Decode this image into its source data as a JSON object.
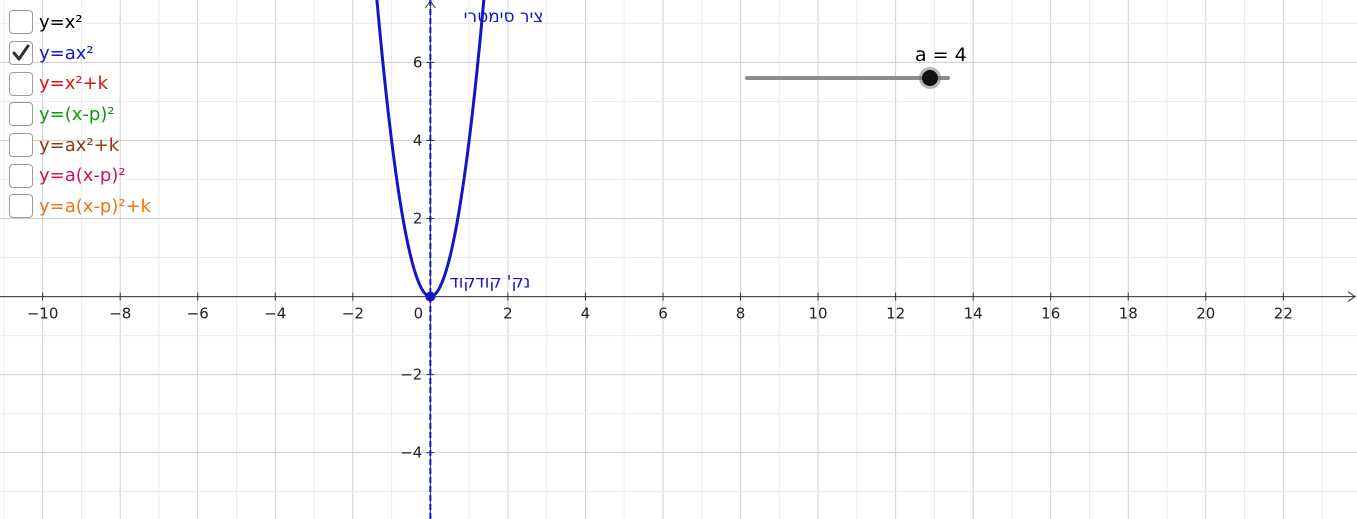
{
  "checkboxes": [
    {
      "label": "y=x²",
      "checked": false,
      "color": "#000000"
    },
    {
      "label": "y=ax²",
      "checked": true,
      "color": "#1515c8"
    },
    {
      "label": "y=x²+k",
      "checked": false,
      "color": "#e01010"
    },
    {
      "label": "y=(x-p)²",
      "checked": false,
      "color": "#119911"
    },
    {
      "label": "y=ax²+k",
      "checked": false,
      "color": "#8b3a0e"
    },
    {
      "label": "y=a(x-p)²",
      "checked": false,
      "color": "#cc1166"
    },
    {
      "label": "y=a(x-p)²+k",
      "checked": false,
      "color": "#ee7711"
    }
  ],
  "slider": {
    "label": "a = 4",
    "value": 4,
    "min": -5,
    "max": 5
  },
  "chart_data": {
    "type": "line",
    "title": "",
    "xlabel": "",
    "ylabel": "",
    "xlim": [
      -11.1,
      23.9
    ],
    "ylim": [
      -5.7,
      7.6
    ],
    "grid": true,
    "x_ticks": [
      -10,
      -8,
      -6,
      -4,
      -2,
      0,
      2,
      4,
      6,
      8,
      10,
      12,
      14,
      16,
      18,
      20,
      22
    ],
    "x_tick_labels": [
      "−10",
      "−8",
      "−6",
      "−4",
      "−2",
      "0",
      "2",
      "4",
      "6",
      "8",
      "10",
      "12",
      "14",
      "16",
      "18",
      "20",
      "22"
    ],
    "y_ticks": [
      -4,
      -2,
      2,
      4,
      6
    ],
    "y_tick_labels": [
      "−4",
      "−2",
      "2",
      "4",
      "6"
    ],
    "series": [
      {
        "name": "y=ax²",
        "function": "y = a·x²",
        "a": 4,
        "color": "#1515c8"
      }
    ],
    "symmetry_axis": {
      "x": 0,
      "label": "ציר סימטרי",
      "color": "#1515c8",
      "style": "dashed"
    },
    "vertex": {
      "x": 0,
      "y": 0,
      "label": "נק' קודקוד",
      "color": "#1515c8"
    }
  }
}
